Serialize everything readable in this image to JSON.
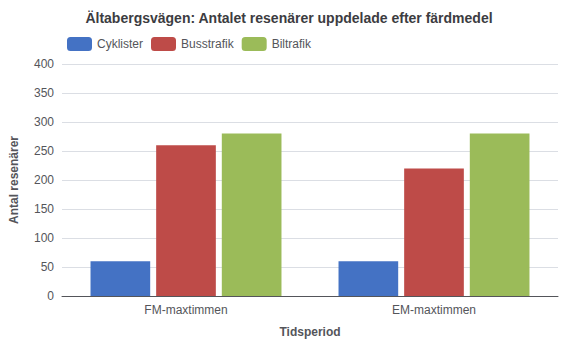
{
  "chart_data": {
    "type": "bar",
    "title": "Ältabergsvägen: Antalet resenärer uppdelade efter färdmedel",
    "xlabel": "Tidsperiod",
    "ylabel": "Antal resenärer",
    "categories": [
      "FM-maxtimmen",
      "EM-maxtimmen"
    ],
    "series": [
      {
        "name": "Cyklister",
        "color": "#4472C4",
        "values": [
          60,
          60
        ]
      },
      {
        "name": "Busstrafik",
        "color": "#BE4B48",
        "values": [
          260,
          220
        ]
      },
      {
        "name": "Biltrafik",
        "color": "#9BBB59",
        "values": [
          280,
          280
        ]
      }
    ],
    "ylim": [
      0,
      400
    ],
    "yticks": [
      0,
      50,
      100,
      150,
      200,
      250,
      300,
      350,
      400
    ],
    "grid": true,
    "legend": "upper left"
  }
}
